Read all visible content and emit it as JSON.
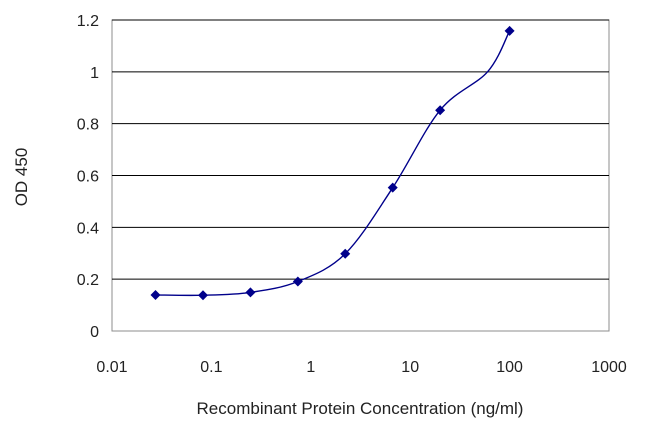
{
  "chart_data": {
    "type": "line",
    "xlabel": "Recombinant Protein Concentration (ng/ml)",
    "ylabel": "OD 450",
    "x_scale": "log",
    "xlim": [
      0.01,
      1000
    ],
    "ylim": [
      0,
      1.2
    ],
    "x_ticks": [
      0.01,
      0.1,
      1,
      10,
      100,
      1000
    ],
    "x_tick_labels": [
      "0.01",
      "0.1",
      "1",
      "10",
      "100",
      "1000"
    ],
    "y_ticks": [
      0,
      0.2,
      0.4,
      0.6,
      0.8,
      1,
      1.2
    ],
    "y_tick_labels": [
      "0",
      "0.2",
      "0.4",
      "0.6",
      "0.8",
      "1",
      "1.2"
    ],
    "grid": "horizontal",
    "legend": "none",
    "series": [
      {
        "x": [
          0.0274,
          0.0823,
          0.247,
          0.741,
          2.22,
          6.67,
          20,
          60,
          100
        ],
        "y": [
          0.139,
          0.138,
          0.149,
          0.191,
          0.298,
          0.553,
          0.852,
          1.0,
          1.158
        ]
      }
    ],
    "colors": {
      "series": "#00008b",
      "grid": "#000000",
      "plot_background": "#ffffff"
    }
  }
}
